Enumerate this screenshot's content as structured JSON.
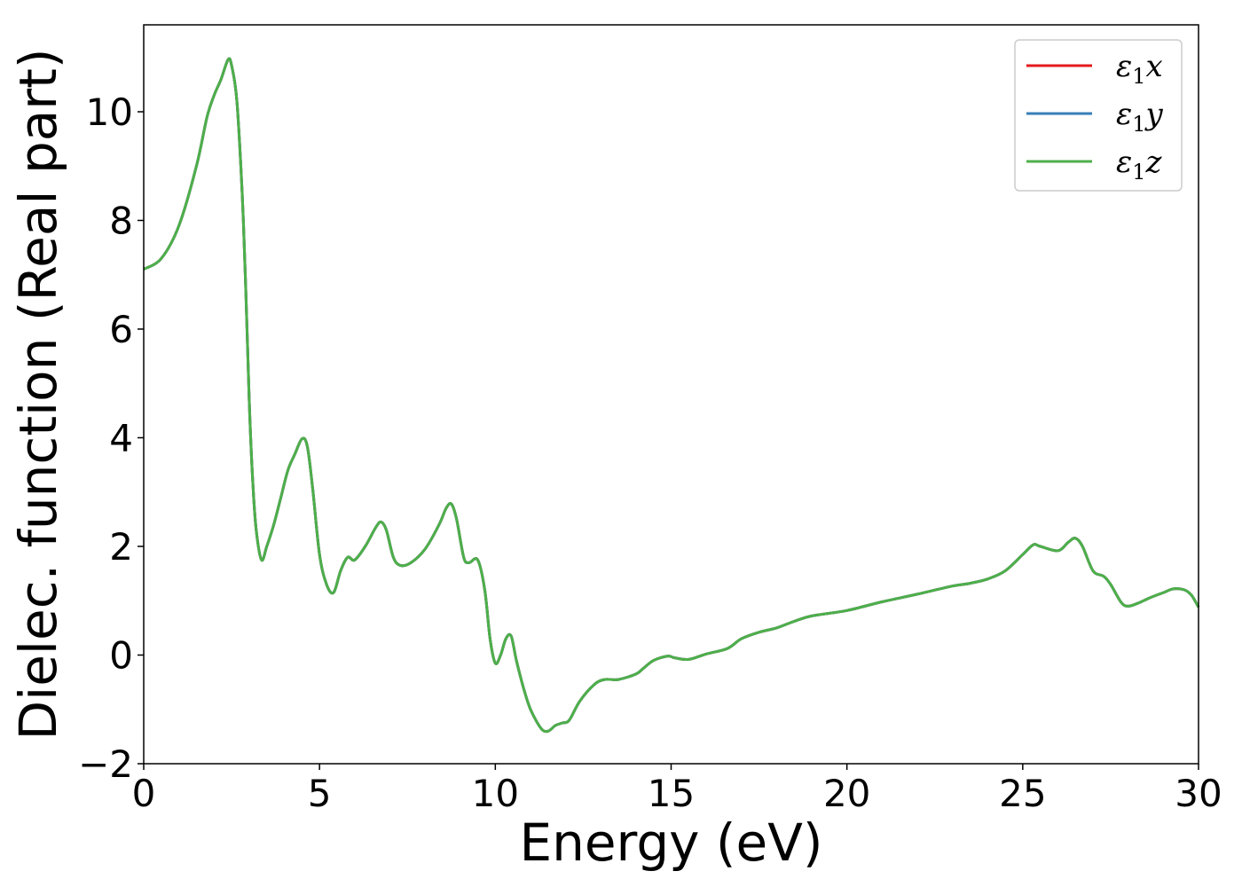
{
  "chart_data": {
    "type": "line",
    "title": "",
    "xlabel": "Energy (eV)",
    "ylabel": "Dielec. function (Real part)",
    "xlim": [
      0,
      30
    ],
    "ylim": [
      -2,
      11.6
    ],
    "xticks": [
      0,
      5,
      10,
      15,
      20,
      25,
      30
    ],
    "yticks": [
      -2,
      0,
      2,
      4,
      6,
      8,
      10
    ],
    "ytick_labels": [
      "−2",
      "0",
      "2",
      "4",
      "6",
      "8",
      "10"
    ],
    "grid": false,
    "legend_position": "top-right",
    "x": [
      0,
      0.5,
      1.0,
      1.5,
      1.8,
      2.0,
      2.2,
      2.4,
      2.5,
      2.65,
      2.8,
      2.9,
      3.0,
      3.1,
      3.2,
      3.35,
      3.5,
      3.7,
      3.9,
      4.1,
      4.3,
      4.5,
      4.65,
      4.8,
      5.0,
      5.2,
      5.4,
      5.6,
      5.8,
      6.0,
      6.3,
      6.6,
      6.75,
      6.9,
      7.1,
      7.3,
      7.6,
      8.0,
      8.4,
      8.6,
      8.75,
      8.9,
      9.1,
      9.25,
      9.5,
      9.7,
      9.85,
      10.0,
      10.15,
      10.3,
      10.45,
      10.6,
      10.8,
      11.0,
      11.3,
      11.5,
      11.7,
      11.9,
      12.1,
      12.4,
      12.8,
      13.1,
      13.5,
      14.0,
      14.2,
      14.5,
      14.9,
      15.1,
      15.5,
      16.0,
      16.6,
      17.0,
      17.5,
      18.0,
      18.5,
      19.0,
      20.0,
      21.0,
      22.0,
      23.0,
      23.5,
      24.0,
      24.5,
      25.0,
      25.3,
      25.5,
      26.0,
      26.3,
      26.5,
      26.7,
      27.0,
      27.3,
      27.5,
      27.8,
      28.0,
      28.3,
      28.6,
      29.0,
      29.3,
      29.6,
      29.8,
      30.0
    ],
    "series": [
      {
        "name": "ε1x",
        "color": "#e41a1c",
        "values": [
          7.1,
          7.3,
          7.9,
          9.0,
          9.9,
          10.3,
          10.6,
          10.96,
          10.85,
          10.2,
          8.5,
          6.8,
          4.7,
          3.2,
          2.3,
          1.75,
          2.0,
          2.4,
          2.9,
          3.4,
          3.7,
          3.98,
          3.85,
          3.1,
          1.85,
          1.3,
          1.15,
          1.55,
          1.8,
          1.75,
          2.0,
          2.35,
          2.45,
          2.3,
          1.8,
          1.65,
          1.7,
          1.95,
          2.4,
          2.7,
          2.78,
          2.5,
          1.8,
          1.7,
          1.75,
          1.2,
          0.3,
          -0.15,
          0.0,
          0.3,
          0.35,
          -0.1,
          -0.6,
          -1.0,
          -1.35,
          -1.4,
          -1.3,
          -1.25,
          -1.2,
          -0.85,
          -0.55,
          -0.45,
          -0.45,
          -0.35,
          -0.25,
          -0.1,
          -0.02,
          -0.05,
          -0.08,
          0.02,
          0.12,
          0.3,
          0.42,
          0.5,
          0.62,
          0.72,
          0.82,
          0.98,
          1.12,
          1.27,
          1.32,
          1.4,
          1.55,
          1.85,
          2.03,
          2.0,
          1.92,
          2.08,
          2.15,
          2.0,
          1.55,
          1.45,
          1.3,
          0.97,
          0.9,
          0.96,
          1.05,
          1.15,
          1.22,
          1.2,
          1.1,
          0.88
        ]
      },
      {
        "name": "ε1y",
        "color": "#377eb8",
        "values": [
          7.1,
          7.3,
          7.9,
          9.0,
          9.9,
          10.3,
          10.6,
          10.96,
          10.85,
          10.2,
          8.5,
          6.8,
          4.7,
          3.2,
          2.3,
          1.75,
          2.0,
          2.4,
          2.9,
          3.4,
          3.7,
          3.98,
          3.85,
          3.1,
          1.85,
          1.3,
          1.15,
          1.55,
          1.8,
          1.75,
          2.0,
          2.35,
          2.45,
          2.3,
          1.8,
          1.65,
          1.7,
          1.95,
          2.4,
          2.7,
          2.78,
          2.5,
          1.8,
          1.7,
          1.75,
          1.2,
          0.3,
          -0.15,
          0.0,
          0.3,
          0.35,
          -0.1,
          -0.6,
          -1.0,
          -1.35,
          -1.4,
          -1.3,
          -1.25,
          -1.2,
          -0.85,
          -0.55,
          -0.45,
          -0.45,
          -0.35,
          -0.25,
          -0.1,
          -0.02,
          -0.05,
          -0.08,
          0.02,
          0.12,
          0.3,
          0.42,
          0.5,
          0.62,
          0.72,
          0.82,
          0.98,
          1.12,
          1.27,
          1.32,
          1.4,
          1.55,
          1.85,
          2.03,
          2.0,
          1.92,
          2.08,
          2.15,
          2.0,
          1.55,
          1.45,
          1.3,
          0.97,
          0.9,
          0.96,
          1.05,
          1.15,
          1.22,
          1.2,
          1.1,
          0.88
        ]
      },
      {
        "name": "ε1z",
        "color": "#4daf4a",
        "values": [
          7.1,
          7.3,
          7.9,
          9.0,
          9.9,
          10.3,
          10.6,
          10.96,
          10.85,
          10.2,
          8.5,
          6.8,
          4.7,
          3.2,
          2.3,
          1.75,
          2.0,
          2.4,
          2.9,
          3.4,
          3.7,
          3.98,
          3.85,
          3.1,
          1.85,
          1.3,
          1.15,
          1.55,
          1.8,
          1.75,
          2.0,
          2.35,
          2.45,
          2.3,
          1.8,
          1.65,
          1.7,
          1.95,
          2.4,
          2.7,
          2.78,
          2.5,
          1.8,
          1.7,
          1.75,
          1.2,
          0.3,
          -0.15,
          0.0,
          0.3,
          0.35,
          -0.1,
          -0.6,
          -1.0,
          -1.35,
          -1.4,
          -1.3,
          -1.25,
          -1.2,
          -0.85,
          -0.55,
          -0.45,
          -0.45,
          -0.35,
          -0.25,
          -0.1,
          -0.02,
          -0.05,
          -0.08,
          0.02,
          0.12,
          0.3,
          0.42,
          0.5,
          0.62,
          0.72,
          0.82,
          0.98,
          1.12,
          1.27,
          1.32,
          1.4,
          1.55,
          1.85,
          2.03,
          2.0,
          1.92,
          2.08,
          2.15,
          2.0,
          1.55,
          1.45,
          1.3,
          0.97,
          0.9,
          0.96,
          1.05,
          1.15,
          1.22,
          1.2,
          1.1,
          0.88
        ]
      }
    ],
    "legend": [
      {
        "symbol": "ε",
        "subscript": "1",
        "axis": "x",
        "color": "#e41a1c"
      },
      {
        "symbol": "ε",
        "subscript": "1",
        "axis": "y",
        "color": "#377eb8"
      },
      {
        "symbol": "ε",
        "subscript": "1",
        "axis": "z",
        "color": "#4daf4a"
      }
    ]
  }
}
